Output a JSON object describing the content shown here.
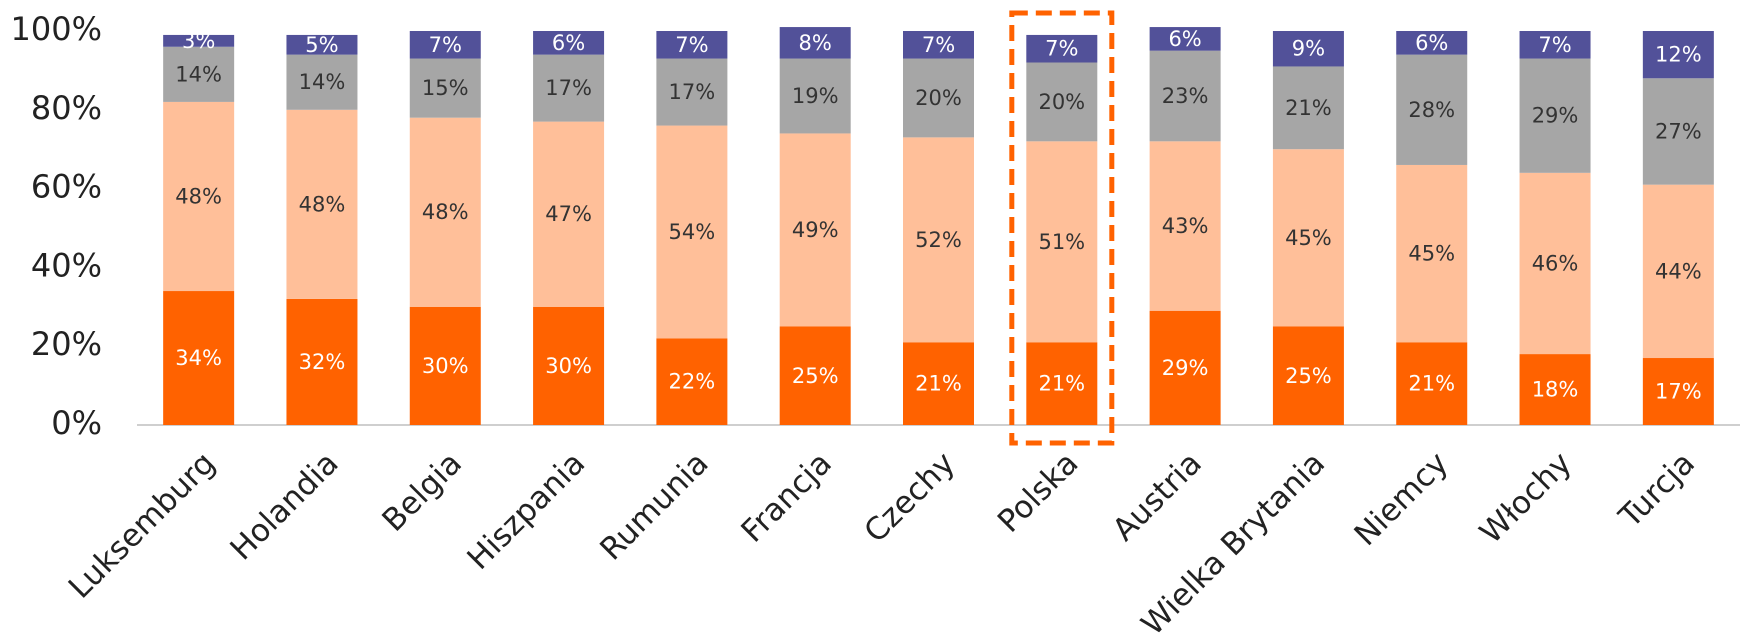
{
  "chart_data": {
    "type": "stacked_bar",
    "categories": [
      "Luksemburg",
      "Holandia",
      "Belgia",
      "Hiszpania",
      "Rumunia",
      "Francja",
      "Czechy",
      "Polska",
      "Austria",
      "Wielka Brytania",
      "Niemcy",
      "Włochy",
      "Turcja"
    ],
    "series": [
      {
        "color": "#ff6200",
        "label_color": "#ffffff",
        "values": [
          34,
          32,
          30,
          30,
          22,
          25,
          21,
          21,
          29,
          25,
          21,
          18,
          17
        ],
        "value_labels": [
          "34%",
          "32%",
          "30%",
          "30%",
          "22%",
          "25%",
          "21%",
          "21%",
          "29%",
          "25%",
          "21%",
          "18%",
          "17%"
        ]
      },
      {
        "color": "#ffbf99",
        "label_color": "#333333",
        "values": [
          48,
          48,
          48,
          47,
          54,
          49,
          52,
          51,
          43,
          45,
          45,
          46,
          44
        ],
        "value_labels": [
          "48%",
          "48%",
          "48%",
          "47%",
          "54%",
          "49%",
          "52%",
          "51%",
          "43%",
          "45%",
          "45%",
          "46%",
          "44%"
        ]
      },
      {
        "color": "#a6a6a6",
        "label_color": "#333333",
        "values": [
          14,
          14,
          15,
          17,
          17,
          19,
          20,
          20,
          23,
          21,
          28,
          29,
          27
        ],
        "value_labels": [
          "14%",
          "14%",
          "15%",
          "17%",
          "17%",
          "19%",
          "20%",
          "20%",
          "23%",
          "21%",
          "28%",
          "29%",
          "27%"
        ]
      },
      {
        "color": "#525199",
        "label_color": "#ffffff",
        "values": [
          3,
          5,
          7,
          6,
          7,
          8,
          7,
          7,
          6,
          9,
          6,
          7,
          12
        ],
        "value_labels": [
          "3%",
          "5%",
          "7%",
          "6%",
          "7%",
          "8%",
          "7%",
          "7%",
          "6%",
          "9%",
          "6%",
          "7%",
          "12%"
        ]
      }
    ],
    "ylim": [
      0,
      100
    ],
    "yticks": [
      {
        "value": 0,
        "label": "0%"
      },
      {
        "value": 20,
        "label": "20%"
      },
      {
        "value": 40,
        "label": "40%"
      },
      {
        "value": 60,
        "label": "60%"
      },
      {
        "value": 80,
        "label": "80%"
      },
      {
        "value": 100,
        "label": "100%"
      }
    ],
    "grid": false,
    "highlight": "Polska",
    "highlight_color": "#ff6200"
  }
}
